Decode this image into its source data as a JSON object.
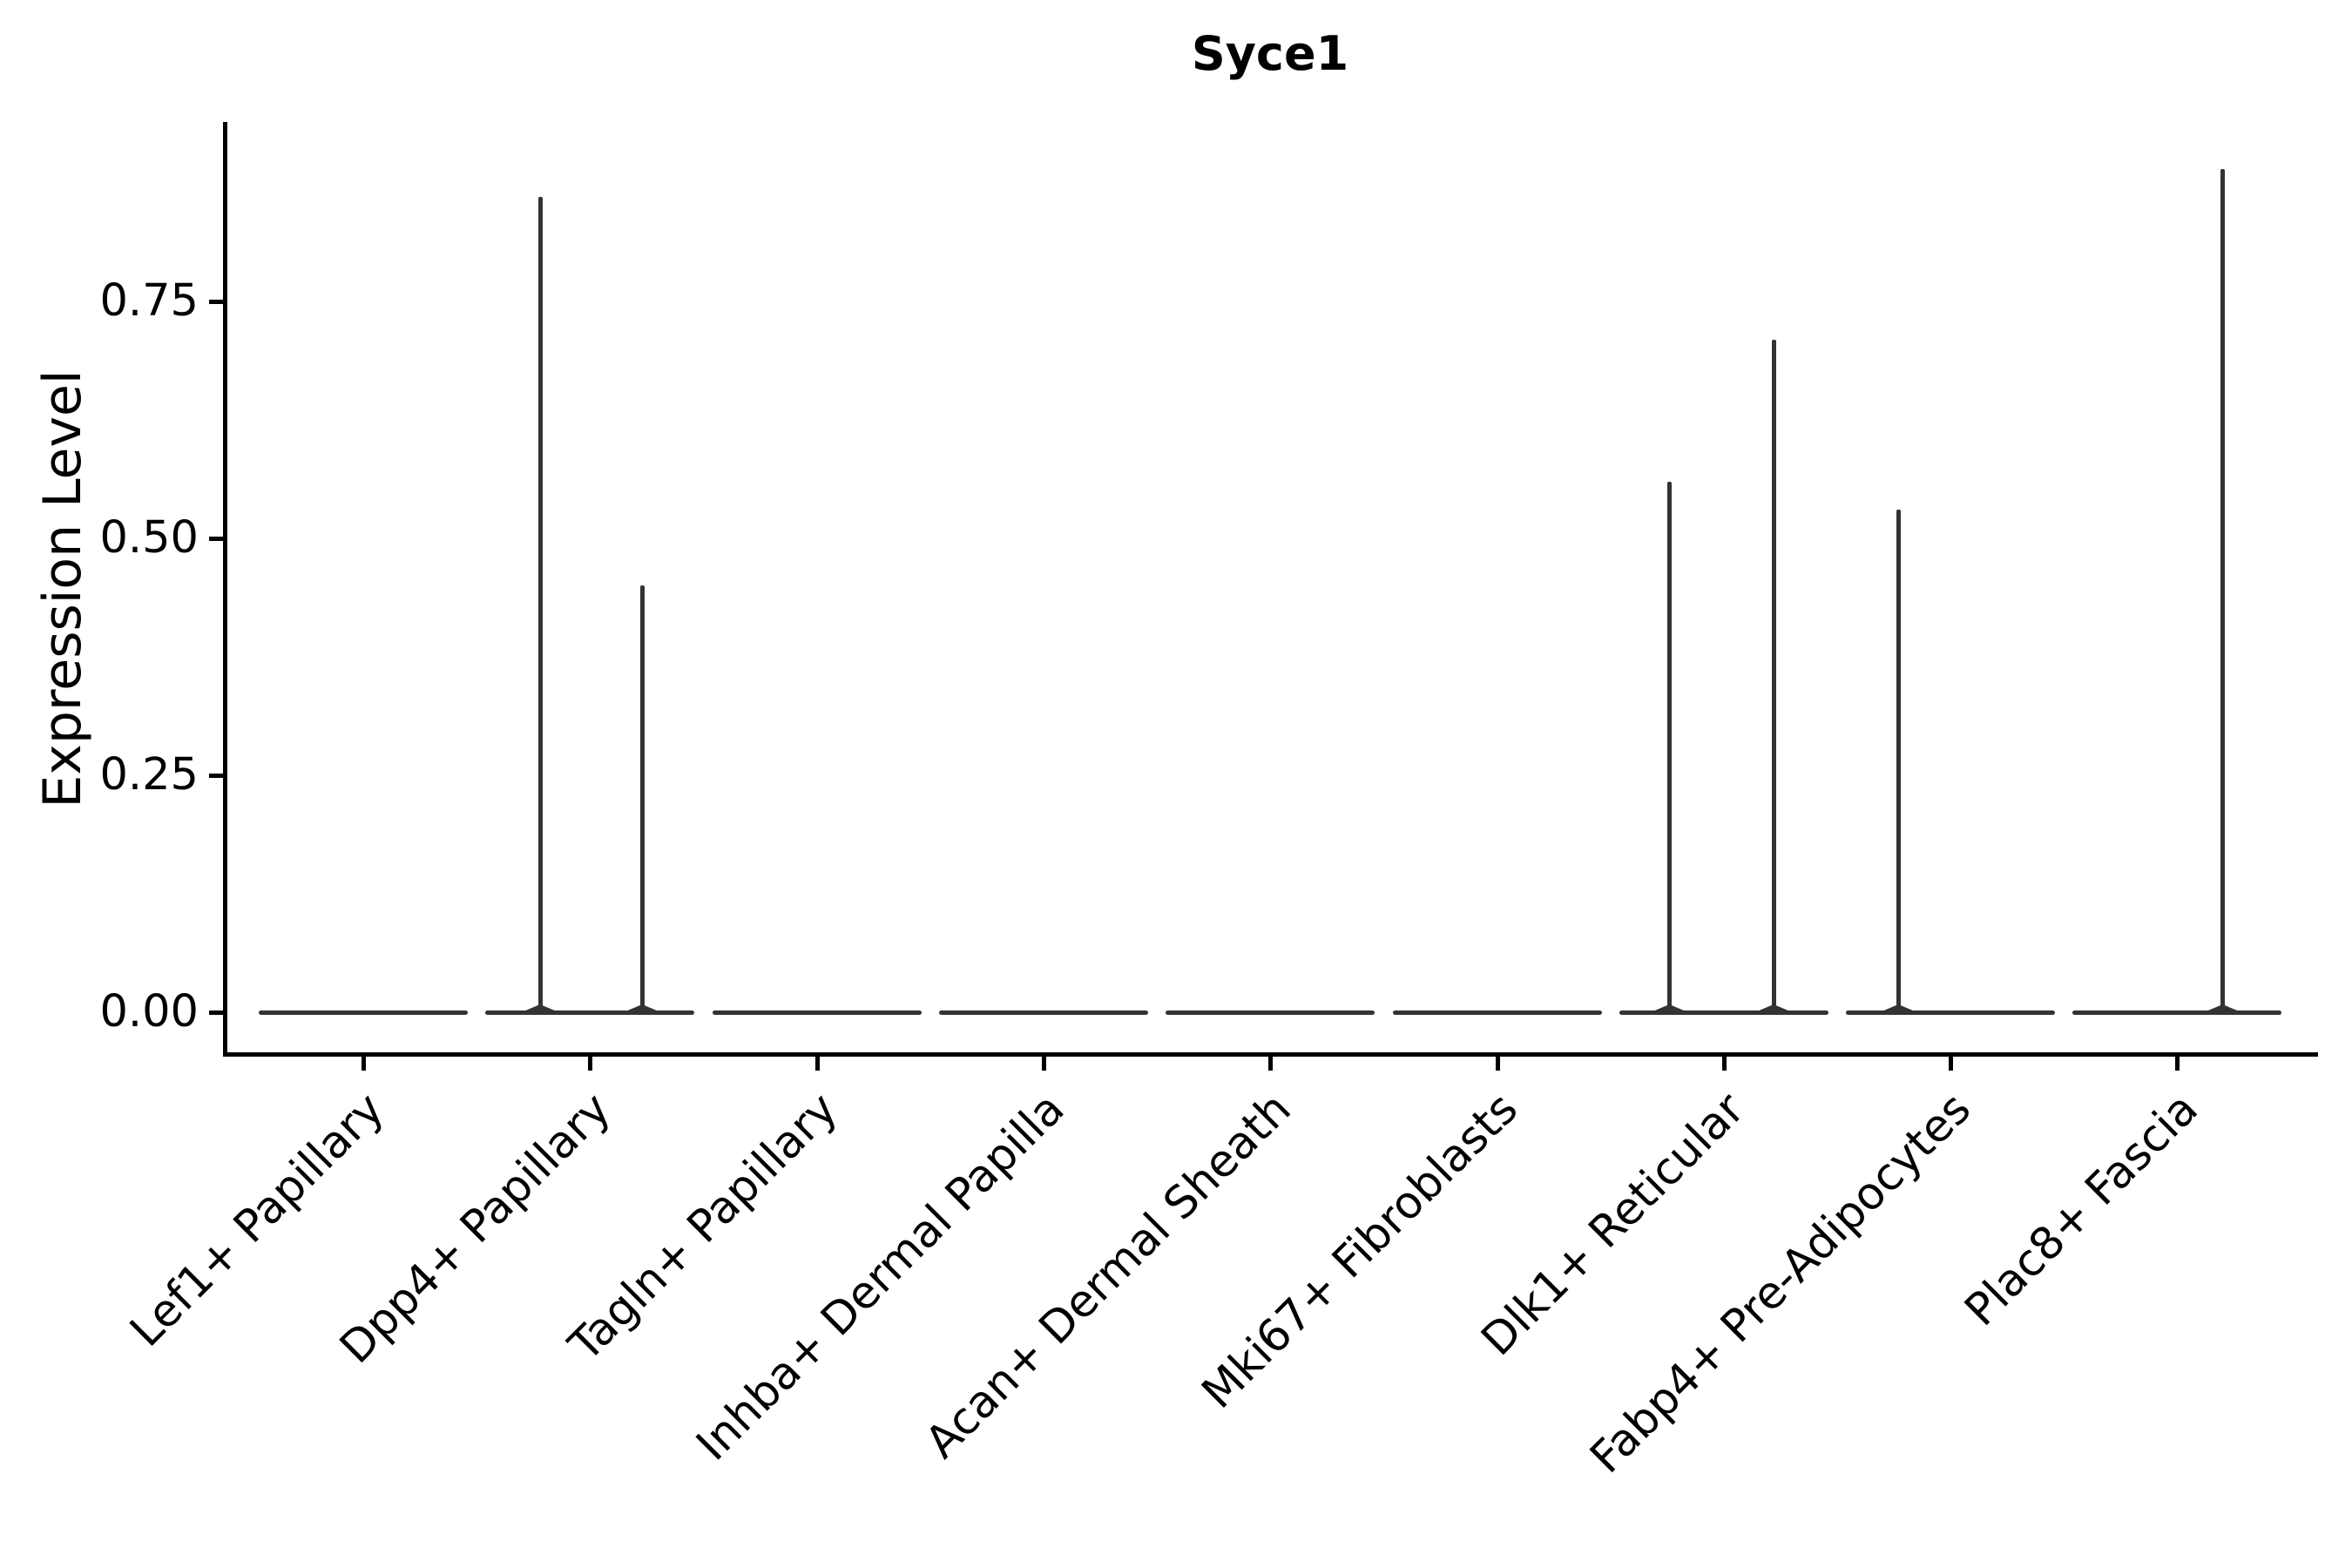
{
  "title": "Syce1",
  "colors": {
    "background": "#ffffff",
    "axis": "#000000",
    "text": "#000000",
    "violin_line": "#333333"
  },
  "chart_data": {
    "type": "violin",
    "title": "Syce1",
    "xlabel": "",
    "ylabel": "Expression Level",
    "ylim": [
      -0.04,
      0.94
    ],
    "grid": false,
    "legend": false,
    "y_ticks": [
      0.0,
      0.25,
      0.5,
      0.75
    ],
    "y_tick_labels": [
      "0.00",
      "0.25",
      "0.50",
      "0.75"
    ],
    "categories": [
      "Lef1+ Papillary",
      "Dpp4+ Papillary",
      "Tagln+ Papillary",
      "Inhba+ Dermal Papilla",
      "Acan+ Dermal Sheath",
      "Mki67+ Fibroblasts",
      "Dlk1+ Reticular",
      "Fabp4+ Pre-Adipocytes",
      "Plac8+ Fascia"
    ],
    "series": [
      {
        "name": "Lef1+ Papillary",
        "baseline_value": 0,
        "spikes": []
      },
      {
        "name": "Dpp4+ Papillary",
        "baseline_value": 0,
        "spikes": [
          {
            "offset": -0.22,
            "value": 0.86
          },
          {
            "offset": 0.23,
            "value": 0.45
          }
        ]
      },
      {
        "name": "Tagln+ Papillary",
        "baseline_value": 0,
        "spikes": []
      },
      {
        "name": "Inhba+ Dermal Papilla",
        "baseline_value": 0,
        "spikes": []
      },
      {
        "name": "Acan+ Dermal Sheath",
        "baseline_value": 0,
        "spikes": []
      },
      {
        "name": "Mki67+ Fibroblasts",
        "baseline_value": 0,
        "spikes": []
      },
      {
        "name": "Dlk1+ Reticular",
        "baseline_value": 0,
        "spikes": [
          {
            "offset": -0.24,
            "value": 0.56
          },
          {
            "offset": 0.22,
            "value": 0.71
          }
        ]
      },
      {
        "name": "Fabp4+ Pre-Adipocytes",
        "baseline_value": 0,
        "spikes": [
          {
            "offset": -0.23,
            "value": 0.53
          }
        ]
      },
      {
        "name": "Plac8+ Fascia",
        "baseline_value": 0,
        "spikes": [
          {
            "offset": 0.2,
            "value": 0.89
          }
        ]
      }
    ],
    "spike_offset_units": "fraction of category slot width from category center"
  }
}
